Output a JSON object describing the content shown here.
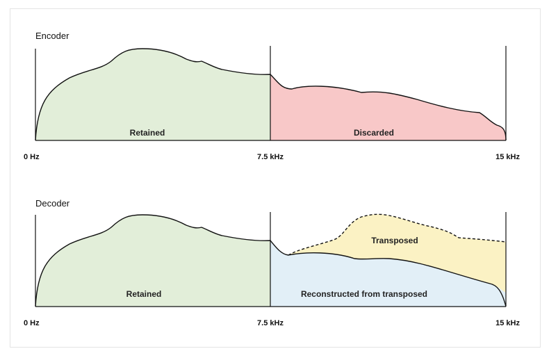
{
  "colors": {
    "retained": "#e2eed9",
    "discarded": "#f8c8c8",
    "transposed": "#fbf2c4",
    "reconstructed": "#e2eff7"
  },
  "encoder": {
    "title": "Encoder",
    "regions": {
      "retained": "Retained",
      "discarded": "Discarded"
    },
    "ticks": {
      "start": "0 Hz",
      "mid": "7.5 kHz",
      "end": "15 kHz"
    }
  },
  "decoder": {
    "title": "Decoder",
    "regions": {
      "retained": "Retained",
      "transposed": "Transposed",
      "reconstructed": "Reconstructed from transposed"
    },
    "ticks": {
      "start": "0 Hz",
      "mid": "7.5 kHz",
      "end": "15 kHz"
    }
  }
}
